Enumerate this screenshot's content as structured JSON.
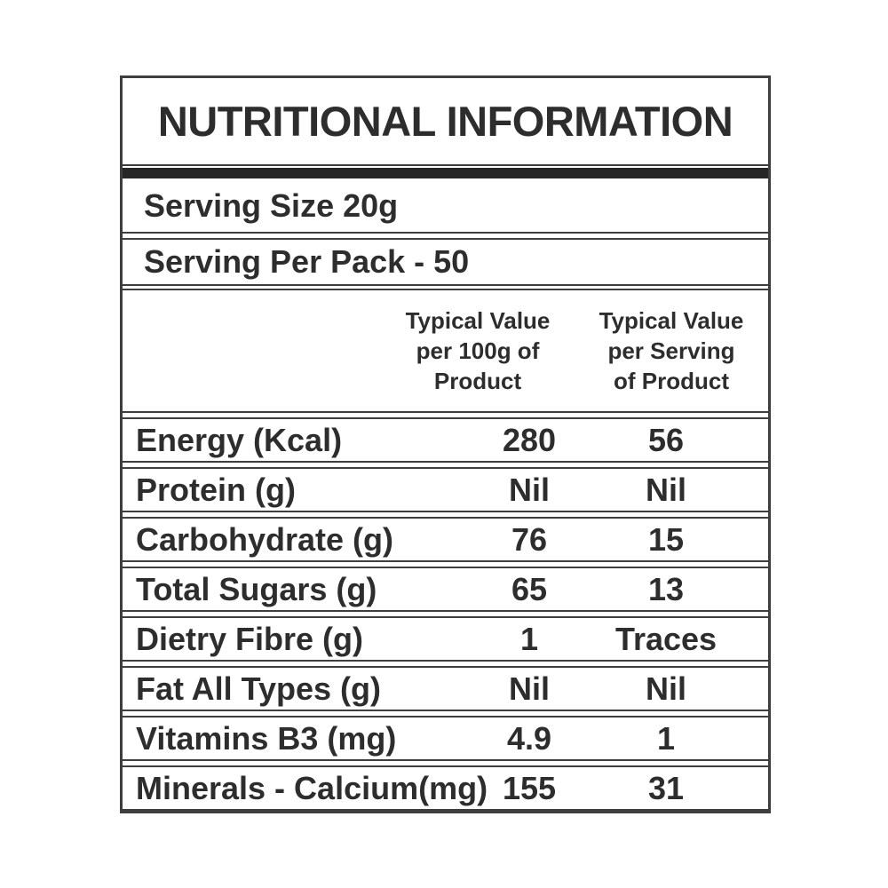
{
  "title": "NUTRITIONAL INFORMATION",
  "serving": {
    "size": "Serving Size 20g",
    "per_pack": "Serving Per Pack - 50"
  },
  "columns": {
    "per_100g": "Typical Value\nper 100g of\nProduct",
    "per_serving": "Typical Value\nper Serving\nof Product"
  },
  "rows": [
    {
      "label": "Energy (Kcal)",
      "per_100g": "280",
      "per_serving": "56"
    },
    {
      "label": "Protein (g)",
      "per_100g": "Nil",
      "per_serving": "Nil"
    },
    {
      "label": "Carbohydrate (g)",
      "per_100g": "76",
      "per_serving": "15"
    },
    {
      "label": "Total Sugars (g)",
      "per_100g": "65",
      "per_serving": "13"
    },
    {
      "label": "Dietry Fibre (g)",
      "per_100g": "1",
      "per_serving": "Traces"
    },
    {
      "label": "Fat All Types (g)",
      "per_100g": "Nil",
      "per_serving": "Nil"
    },
    {
      "label": "Vitamins B3 (mg)",
      "per_100g": "4.9",
      "per_serving": "1"
    },
    {
      "label": "Minerals - Calcium(mg)",
      "per_100g": "155",
      "per_serving": "31"
    }
  ],
  "colors": {
    "text": "#2d2d2d",
    "border": "#3e3e3e",
    "bar": "#262626",
    "background": "#ffffff"
  }
}
